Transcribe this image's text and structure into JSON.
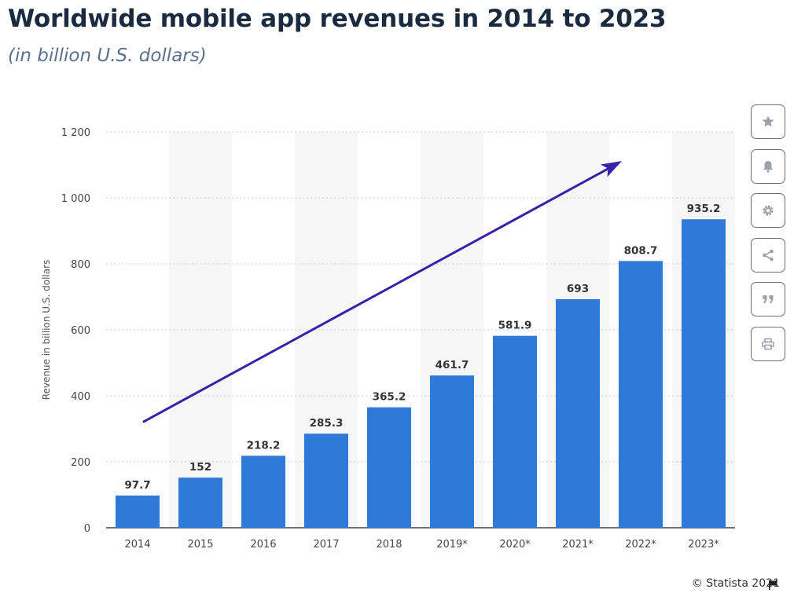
{
  "title": "Worldwide mobile app revenues in 2014 to 2023",
  "subtitle": "(in billion U.S. dollars)",
  "credit": "© Statista 2021",
  "toolbar": [
    {
      "icon": "star-icon",
      "name": "favorite-button"
    },
    {
      "icon": "bell-icon",
      "name": "notification-button"
    },
    {
      "icon": "gear-icon",
      "name": "settings-button"
    },
    {
      "icon": "share-icon",
      "name": "share-button"
    },
    {
      "icon": "quote-icon",
      "name": "cite-button"
    },
    {
      "icon": "print-icon",
      "name": "print-button"
    }
  ],
  "colors": {
    "bar": "#2f7ad9",
    "arrow": "#3a1fa8",
    "band": "#f6f6f6",
    "grid": "#cfcfcf"
  },
  "chart_data": {
    "type": "bar",
    "categories": [
      "2014",
      "2015",
      "2016",
      "2017",
      "2018",
      "2019*",
      "2020*",
      "2021*",
      "2022*",
      "2023*"
    ],
    "values": [
      97.7,
      152,
      218.2,
      285.3,
      365.2,
      461.7,
      581.9,
      693,
      808.7,
      935.2
    ],
    "value_labels": [
      "97.7",
      "152",
      "218.2",
      "285.3",
      "365.2",
      "461.7",
      "581.9",
      "693",
      "808.7",
      "935.2"
    ],
    "ylabel": "Revenue in billion U.S. dollars",
    "xlabel": "",
    "ylim": [
      0,
      1200
    ],
    "yticks": [
      0,
      200,
      400,
      600,
      800,
      1000,
      1200
    ],
    "ytick_labels": [
      "0",
      "200",
      "400",
      "600",
      "800",
      "1 000",
      "1 200"
    ],
    "grid": true,
    "legend": "none",
    "annotation": "upward trend arrow"
  }
}
